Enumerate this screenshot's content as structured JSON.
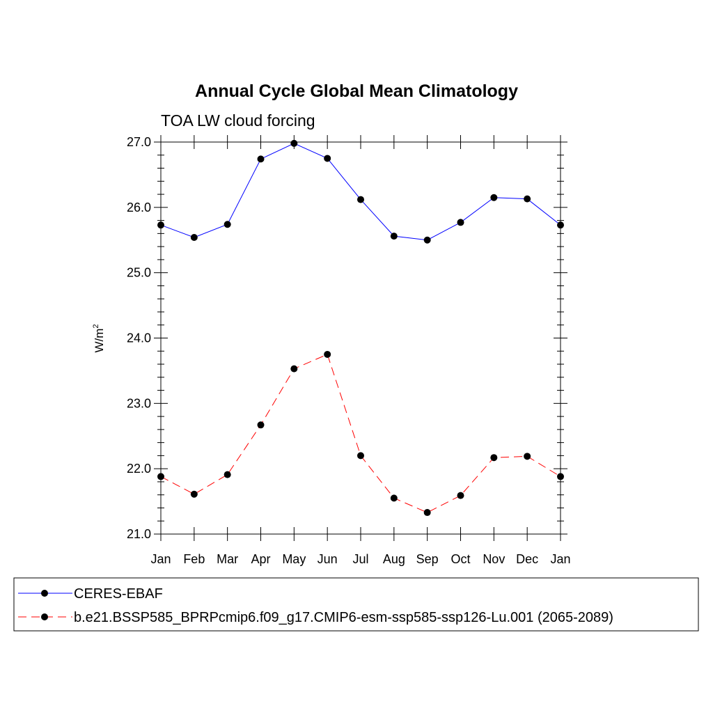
{
  "chart_data": {
    "type": "line",
    "title": "Annual Cycle Global Mean Climatology",
    "subtitle": "TOA LW cloud forcing",
    "ylabel": "W/m",
    "ylabel_sup": "2",
    "xlabel": "",
    "ylim": [
      21.0,
      27.0
    ],
    "yticks": [
      "21.0",
      "22.0",
      "23.0",
      "24.0",
      "25.0",
      "26.0",
      "27.0"
    ],
    "categories": [
      "Jan",
      "Feb",
      "Mar",
      "Apr",
      "May",
      "Jun",
      "Jul",
      "Aug",
      "Sep",
      "Oct",
      "Nov",
      "Dec",
      "Jan"
    ],
    "grid": false,
    "legend_position": "bottom",
    "series": [
      {
        "name": "CERES-EBAF",
        "color": "#0000ff",
        "dash": "solid",
        "values": [
          25.73,
          25.54,
          25.74,
          26.74,
          26.98,
          26.75,
          26.12,
          25.56,
          25.5,
          25.77,
          26.15,
          26.13,
          25.73
        ]
      },
      {
        "name": "b.e21.BSSP585_BPRPcmip6.f09_g17.CMIP6-esm-ssp585-ssp126-Lu.001 (2065-2089)",
        "color": "#ff0000",
        "dash": "dashed",
        "values": [
          21.88,
          21.61,
          21.91,
          22.67,
          23.53,
          23.75,
          22.2,
          21.55,
          21.33,
          21.59,
          22.17,
          22.19,
          21.88
        ]
      }
    ]
  }
}
